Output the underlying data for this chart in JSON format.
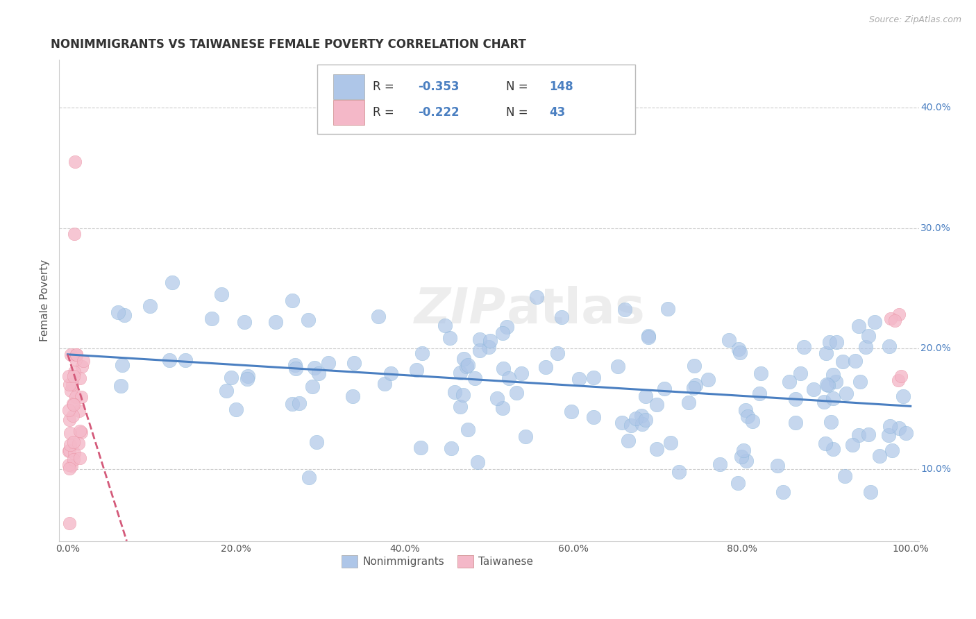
{
  "title": "NONIMMIGRANTS VS TAIWANESE FEMALE POVERTY CORRELATION CHART",
  "source": "Source: ZipAtlas.com",
  "ylabel": "Female Poverty",
  "xlim": [
    -0.01,
    1.01
  ],
  "ylim": [
    0.04,
    0.44
  ],
  "xticks": [
    0.0,
    0.1,
    0.2,
    0.3,
    0.4,
    0.5,
    0.6,
    0.7,
    0.8,
    0.9,
    1.0
  ],
  "xticklabels": [
    "0.0%",
    "",
    "20.0%",
    "",
    "40.0%",
    "",
    "60.0%",
    "",
    "80.0%",
    "",
    "100.0%"
  ],
  "ytick_positions": [
    0.1,
    0.2,
    0.3,
    0.4
  ],
  "yticklabels": [
    "10.0%",
    "20.0%",
    "30.0%",
    "40.0%"
  ],
  "blue_color": "#aec6e8",
  "blue_edge_color": "#7aafd4",
  "blue_line_color": "#4a7fc1",
  "pink_color": "#f4b8c8",
  "pink_edge_color": "#e8899a",
  "pink_line_color": "#d45a7a",
  "legend_R1": "-0.353",
  "legend_N1": "148",
  "legend_R2": "-0.222",
  "legend_N2": "43",
  "background_color": "#ffffff",
  "grid_color": "#cccccc",
  "blue_line_x": [
    0.0,
    1.0
  ],
  "blue_line_y": [
    0.195,
    0.152
  ],
  "pink_line_x": [
    0.0,
    0.07
  ],
  "pink_line_y": [
    0.195,
    0.04
  ]
}
